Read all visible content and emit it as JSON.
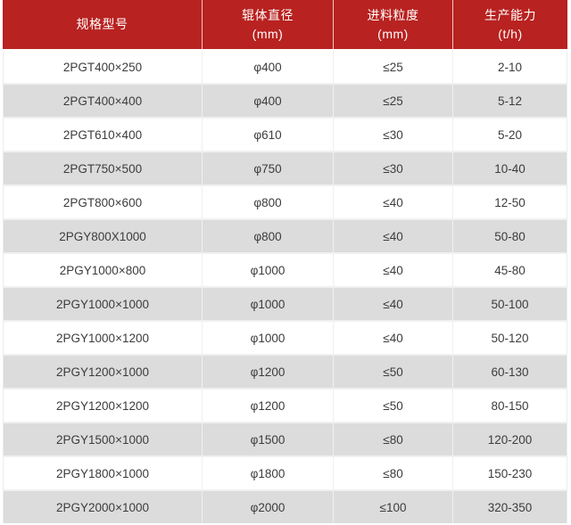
{
  "chart_data": {
    "type": "table",
    "title": "",
    "columns": [
      {
        "label": "规格型号",
        "unit": ""
      },
      {
        "label": "辊体直径",
        "unit": "(mm)"
      },
      {
        "label": "进料粒度",
        "unit": "(mm)"
      },
      {
        "label": "生产能力",
        "unit": "(t/h)"
      }
    ],
    "rows": [
      [
        "2PGT400×250",
        "φ400",
        "≤25",
        "2-10"
      ],
      [
        "2PGT400×400",
        "φ400",
        "≤25",
        "5-12"
      ],
      [
        "2PGT610×400",
        "φ610",
        "≤30",
        "5-20"
      ],
      [
        "2PGT750×500",
        "φ750",
        "≤30",
        "10-40"
      ],
      [
        "2PGT800×600",
        "φ800",
        "≤40",
        "12-50"
      ],
      [
        "2PGY800X1000",
        "φ800",
        "≤40",
        "50-80"
      ],
      [
        "2PGY1000×800",
        "φ1000",
        "≤40",
        "45-80"
      ],
      [
        "2PGY1000×1000",
        "φ1000",
        "≤40",
        "50-100"
      ],
      [
        "2PGY1000×1200",
        "φ1000",
        "≤40",
        "50-120"
      ],
      [
        "2PGY1200×1000",
        "φ1200",
        "≤50",
        "60-130"
      ],
      [
        "2PGY1200×1200",
        "φ1200",
        "≤50",
        "80-150"
      ],
      [
        "2PGY1500×1000",
        "φ1500",
        "≤80",
        "120-200"
      ],
      [
        "2PGY1800×1000",
        "φ1800",
        "≤80",
        "150-230"
      ],
      [
        "2PGY2000×1000",
        "φ2000",
        "≤100",
        "320-350"
      ]
    ]
  },
  "colors": {
    "header_bg": "#b82220",
    "header_text": "#ffffff",
    "row_bg": "#ffffff",
    "row_alt_bg": "#dcdcdc",
    "body_text": "#3c3c3c",
    "grid_line": "#f0f0f0"
  }
}
